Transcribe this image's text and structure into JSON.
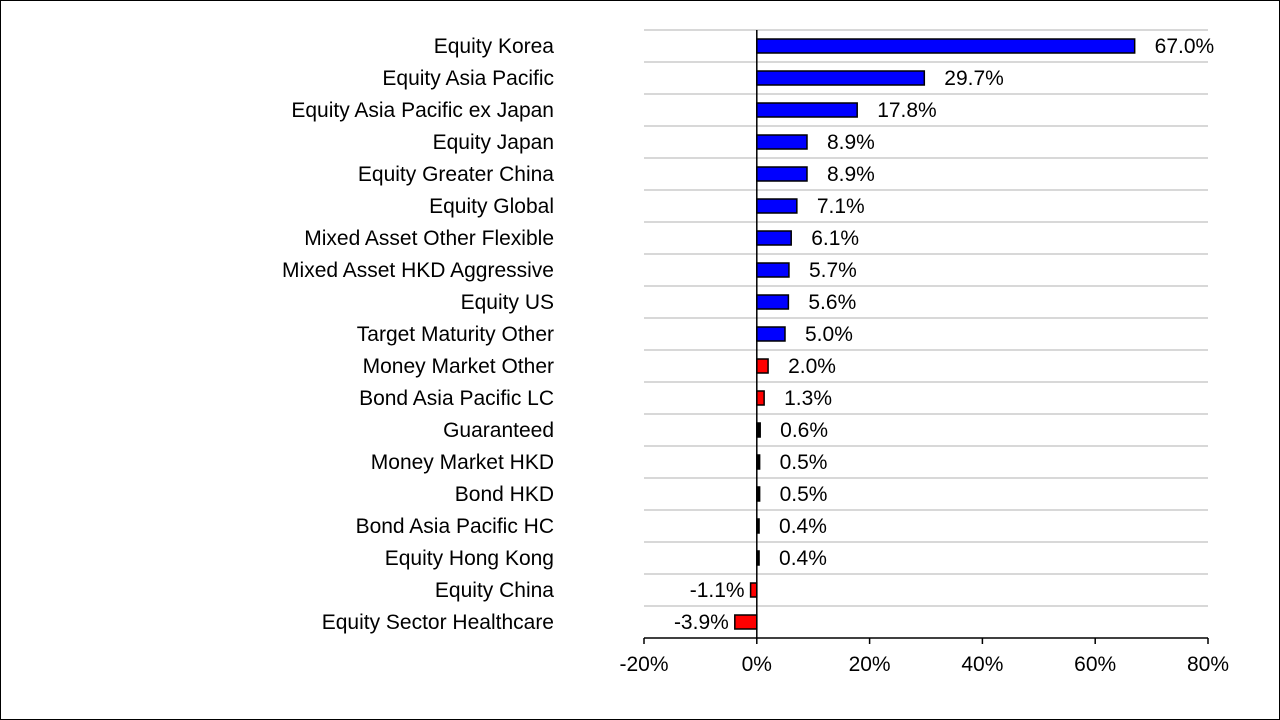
{
  "chart_data": {
    "type": "bar",
    "orientation": "horizontal",
    "categories": [
      "Equity Korea",
      "Equity Asia Pacific",
      "Equity Asia Pacific ex Japan",
      "Equity Japan",
      "Equity Greater China",
      "Equity Global",
      "Mixed Asset Other Flexible",
      "Mixed Asset HKD Aggressive",
      "Equity US",
      "Target Maturity Other",
      "Money Market Other",
      "Bond Asia Pacific LC",
      "Guaranteed",
      "Money Market HKD",
      "Bond HKD",
      "Bond Asia Pacific HC",
      "Equity Hong Kong",
      "Equity China",
      "Equity Sector Healthcare"
    ],
    "values": [
      67.0,
      29.7,
      17.8,
      8.9,
      8.9,
      7.1,
      6.1,
      5.7,
      5.6,
      5.0,
      2.0,
      1.3,
      0.6,
      0.5,
      0.5,
      0.4,
      0.4,
      -1.1,
      -3.9
    ],
    "data_labels": [
      "67.0%",
      "29.7%",
      "17.8%",
      "8.9%",
      "8.9%",
      "7.1%",
      "6.1%",
      "5.7%",
      "5.6%",
      "5.0%",
      "2.0%",
      "1.3%",
      "0.6%",
      "0.5%",
      "0.5%",
      "0.4%",
      "0.4%",
      "-1.1%",
      "-3.9%"
    ],
    "bar_colors": [
      "#0000ff",
      "#0000ff",
      "#0000ff",
      "#0000ff",
      "#0000ff",
      "#0000ff",
      "#0000ff",
      "#0000ff",
      "#0000ff",
      "#0000ff",
      "#ff0000",
      "#ff0000",
      "#000000",
      "#000000",
      "#000000",
      "#000000",
      "#000000",
      "#ff0000",
      "#ff0000"
    ],
    "x_ticks": [
      -20,
      0,
      20,
      40,
      60,
      80
    ],
    "x_tick_labels": [
      "-20%",
      "0%",
      "20%",
      "40%",
      "60%",
      "80%"
    ],
    "xlim": [
      -20,
      80
    ],
    "title": "",
    "xlabel": "",
    "ylabel": "",
    "grid": "horizontal",
    "legend": "none"
  }
}
